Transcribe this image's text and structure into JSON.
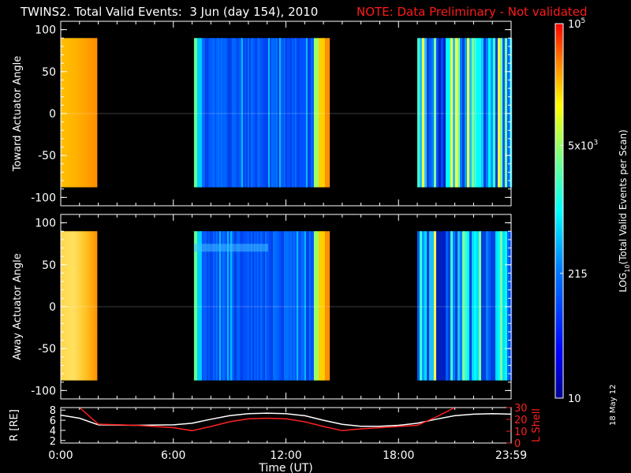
{
  "header": {
    "title": "TWINS2. Total Valid Events:  3 Jun (day 154), 2010",
    "note": "NOTE: Data Preliminary - Not validated",
    "note_color": "#ff1a1a",
    "stamp": "18 May 12"
  },
  "chart_data": [
    {
      "type": "heatmap",
      "ylabel": "Toward Actuator Angle",
      "x_ticks": [
        "0:00",
        "6:00",
        "12:00",
        "18:00",
        "23:59"
      ],
      "y_ticks": [
        "100",
        "50",
        "0",
        "-50",
        "-100"
      ],
      "ylim": [
        -110,
        110
      ],
      "xlim_hours": [
        0,
        24
      ],
      "y_data_range": [
        -88,
        90
      ],
      "data_windows_hours": [
        {
          "start": 0.0,
          "end": 1.95,
          "level": "high"
        },
        {
          "start": 7.1,
          "end": 14.3,
          "level": "low"
        },
        {
          "start": 19.0,
          "end": 24.0,
          "level": "mixed"
        }
      ]
    },
    {
      "type": "heatmap",
      "ylabel": "Away Actuator Angle",
      "x_ticks": [
        "0:00",
        "6:00",
        "12:00",
        "18:00",
        "23:59"
      ],
      "y_ticks": [
        "100",
        "50",
        "0",
        "-50",
        "-100"
      ],
      "ylim": [
        -110,
        110
      ],
      "xlim_hours": [
        0,
        24
      ],
      "y_data_range": [
        -88,
        90
      ],
      "data_windows_hours": [
        {
          "start": 0.0,
          "end": 1.95,
          "level": "high"
        },
        {
          "start": 7.1,
          "end": 14.3,
          "level": "low"
        },
        {
          "start": 19.0,
          "end": 24.0,
          "level": "mixed"
        }
      ]
    },
    {
      "type": "line",
      "xlabel": "Time (UT)",
      "x_ticks": [
        "0:00",
        "6:00",
        "12:00",
        "18:00",
        "23:59"
      ],
      "left_ylabel": "R [RE]",
      "left_y_ticks": [
        "8",
        "6",
        "4",
        "2"
      ],
      "left_ylim": [
        1.5,
        8.5
      ],
      "right_ylabel": "L Shell",
      "right_y_ticks": [
        "30",
        "20",
        "10",
        "0"
      ],
      "right_ylim": [
        0,
        30
      ],
      "series": [
        {
          "axis": "left",
          "color": "#ffffff",
          "x": [
            0,
            1,
            2,
            4,
            6,
            7,
            8,
            9,
            10,
            11,
            12,
            13,
            14,
            15,
            16,
            17,
            18,
            19,
            20,
            21,
            22,
            23,
            24
          ],
          "y": [
            7.0,
            6.4,
            5.1,
            5.0,
            5.1,
            5.4,
            6.2,
            6.9,
            7.3,
            7.4,
            7.3,
            6.9,
            6.0,
            5.2,
            4.8,
            4.8,
            5.0,
            5.4,
            6.2,
            6.9,
            7.2,
            7.3,
            7.2
          ]
        },
        {
          "axis": "right",
          "color": "#ff2020",
          "x": [
            1.0,
            2.0,
            4.0,
            6.0,
            7.0,
            8.0,
            9.0,
            10.0,
            11.0,
            12.0,
            13.0,
            14.0,
            15.0,
            16.0,
            17.0,
            18.0,
            19.0,
            20.0,
            21.0
          ],
          "y": [
            30,
            16,
            15,
            13,
            10.5,
            14,
            18,
            20.5,
            21,
            20.5,
            18,
            14,
            10.5,
            12,
            13,
            14,
            15,
            22,
            30
          ]
        }
      ]
    }
  ],
  "colorbar": {
    "label": "LOG10(Total Valid Events per Scan)",
    "label_main": "LOG",
    "label_sub": "10",
    "label_rest": "(Total Valid Events per Scan)",
    "ticks": [
      {
        "text": "10",
        "value": 10
      },
      {
        "text": "215",
        "value": 215
      },
      {
        "text": "5x10",
        "sup": "3",
        "value": 5000
      },
      {
        "text": "10",
        "sup": "5",
        "value": 100000
      }
    ]
  }
}
